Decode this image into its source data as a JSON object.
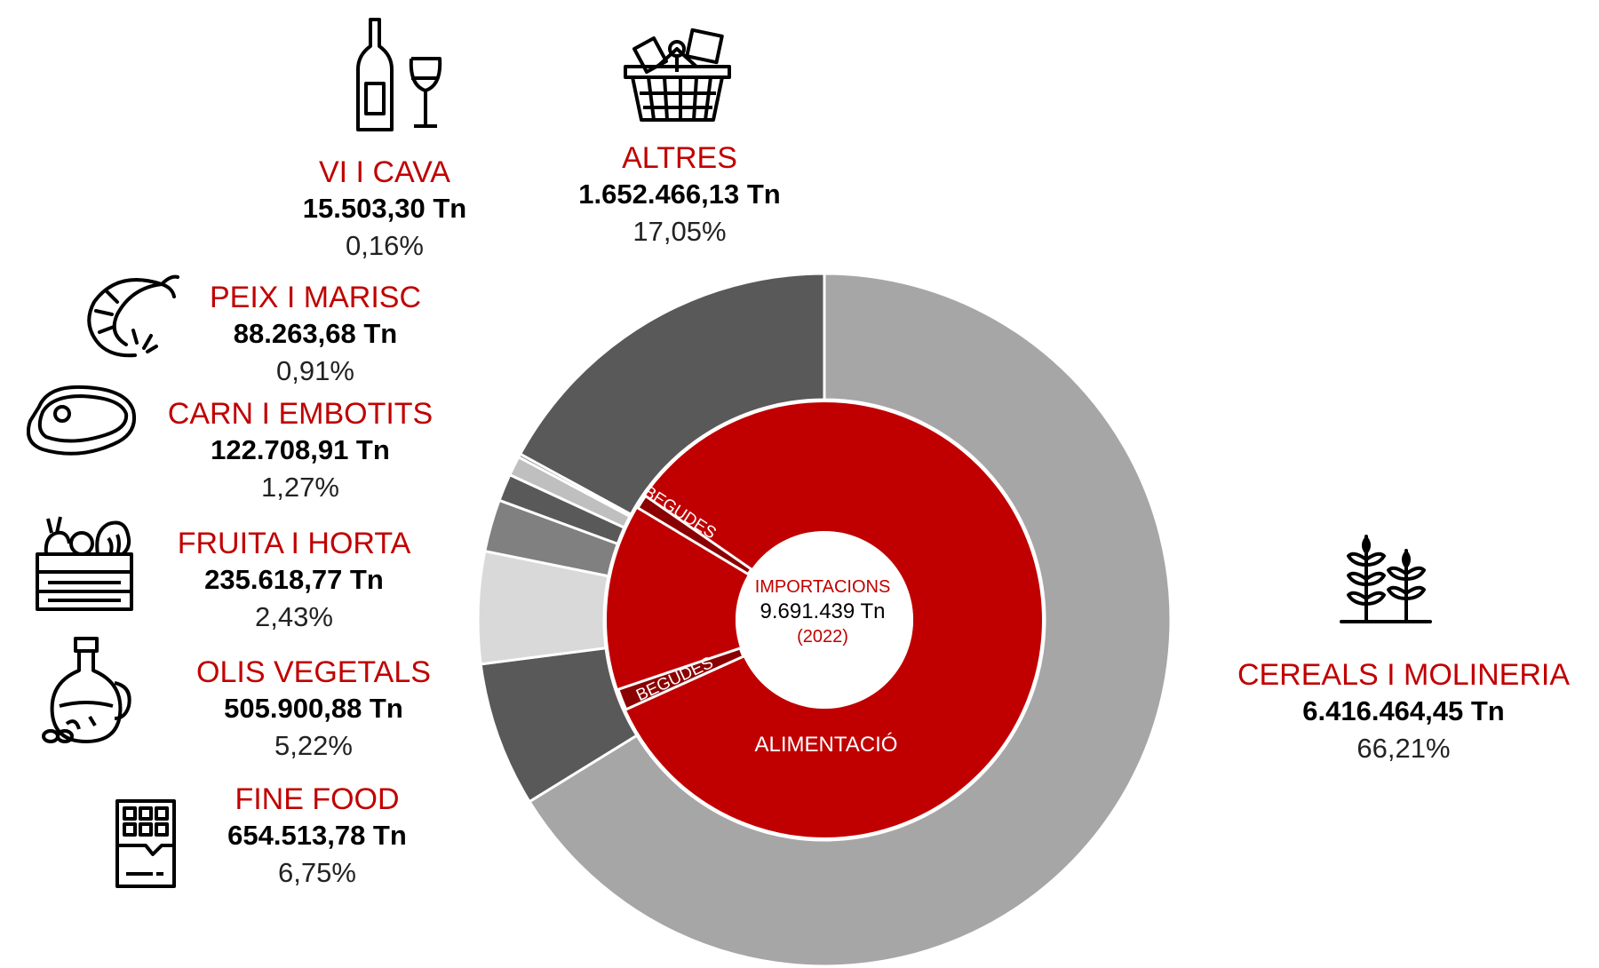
{
  "chart_data": {
    "type": "donut",
    "title": "",
    "outer_series": [
      {
        "name": "CEREALS I MOLINERIA",
        "value": 6416464.45,
        "value_label": "6.416.464,45 Tn",
        "percent": 66.21,
        "percent_label": "66,21%",
        "color": "#a6a6a6",
        "icon": "wheat-icon"
      },
      {
        "name": "FINE FOOD",
        "value": 654513.78,
        "value_label": "654.513,78 Tn",
        "percent": 6.75,
        "percent_label": "6,75%",
        "color": "#595959",
        "icon": "chocolate-bar-icon"
      },
      {
        "name": "OLIS VEGETALS",
        "value": 505900.88,
        "value_label": "505.900,88 Tn",
        "percent": 5.22,
        "percent_label": "5,22%",
        "color": "#d9d9d9",
        "icon": "oil-bottle-icon"
      },
      {
        "name": "FRUITA I HORTA",
        "value": 235618.77,
        "value_label": "235.618,77 Tn",
        "percent": 2.43,
        "percent_label": "2,43%",
        "color": "#808080",
        "icon": "vegetable-crate-icon"
      },
      {
        "name": "CARN I EMBOTITS",
        "value": 122708.91,
        "value_label": "122.708,91 Tn",
        "percent": 1.27,
        "percent_label": "1,27%",
        "color": "#595959",
        "icon": "steak-icon"
      },
      {
        "name": "PEIX I MARISC",
        "value": 88263.68,
        "value_label": "88.263,68 Tn",
        "percent": 0.91,
        "percent_label": "0,91%",
        "color": "#bfbfbf",
        "icon": "shrimp-icon"
      },
      {
        "name": "VI I CAVA",
        "value": 15503.3,
        "value_label": "15.503,30 Tn",
        "percent": 0.16,
        "percent_label": "0,16%",
        "color": "#7f7f7f",
        "icon": "wine-bottle-glass-icon"
      },
      {
        "name": "ALTRES",
        "value": 1652466.13,
        "value_label": "1.652.466,13 Tn",
        "percent": 17.05,
        "percent_label": "17,05%",
        "color": "#595959",
        "icon": "shopping-basket-icon"
      }
    ],
    "inner_series": [
      {
        "name": "ALIMENTACIÓ",
        "percent": 99.3,
        "color": "#c00000"
      },
      {
        "name": "BEGUDES",
        "percent": 0.55,
        "color": "#8b0000"
      },
      {
        "name": "BEGUDES",
        "percent": 0.15,
        "color": "#8b0000"
      }
    ],
    "center": {
      "title": "IMPORTACIONS",
      "total": "9.691.439 Tn",
      "year": "(2022)"
    },
    "colors": {
      "accent": "#c00000",
      "dark_red": "#8b0000"
    }
  }
}
